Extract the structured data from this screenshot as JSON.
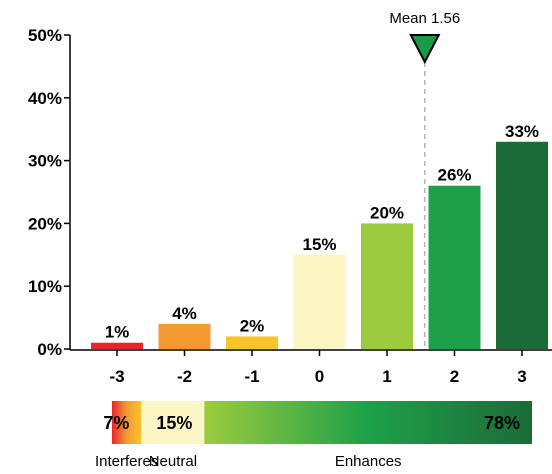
{
  "chart_data": {
    "type": "bar",
    "categories": [
      "-3",
      "-2",
      "-1",
      "0",
      "1",
      "2",
      "3"
    ],
    "values": [
      1,
      4,
      2,
      15,
      20,
      26,
      33
    ],
    "value_labels": [
      "1%",
      "4%",
      "2%",
      "15%",
      "20%",
      "26%",
      "33%"
    ],
    "bar_colors": [
      "#e8262b",
      "#f39a33",
      "#fbc52a",
      "#fbf6c4",
      "#9ccb3e",
      "#1ea04a",
      "#1c6b37"
    ],
    "ylim": [
      0,
      50
    ],
    "y_ticks": [
      0,
      10,
      20,
      30,
      40,
      50
    ],
    "y_tick_labels": [
      "0%",
      "10%",
      "20%",
      "30%",
      "40%",
      "50%"
    ],
    "grid": false,
    "mean": {
      "value": 1.56,
      "label": "Mean 1.56",
      "color": "#1a9a48"
    },
    "summary": [
      {
        "name": "Interferes",
        "value": 7,
        "label": "7%",
        "colors": [
          "#e8262b",
          "#f39a33",
          "#fbc52a"
        ]
      },
      {
        "name": "Neutral",
        "value": 15,
        "label": "15%",
        "colors": [
          "#fbf6c4",
          "#fbf6c4"
        ]
      },
      {
        "name": "Enhances",
        "value": 78,
        "label": "78%",
        "colors": [
          "#9ccb3e",
          "#1ea04a",
          "#1c6b37"
        ]
      }
    ]
  }
}
